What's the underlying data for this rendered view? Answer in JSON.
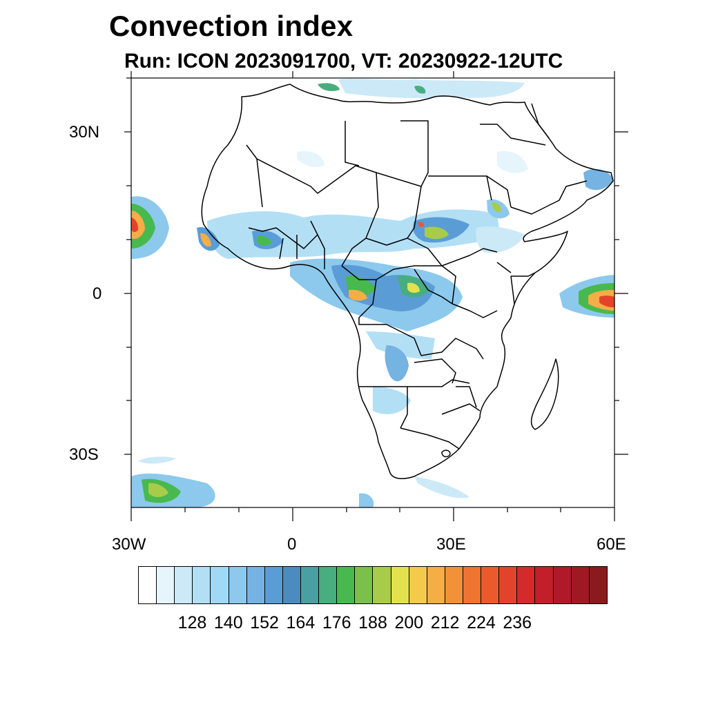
{
  "title": "Convection index",
  "subtitle": "Run: ICON 2023091700,  VT: 20230922-12UTC",
  "axes": {
    "lat_labels": [
      "30N",
      "0",
      "30S"
    ],
    "lon_labels": [
      "30W",
      "0",
      "30E",
      "60E"
    ]
  },
  "colorbar": {
    "colors": [
      "#ffffff",
      "#e6f5fc",
      "#cce9f7",
      "#b3dff5",
      "#a0d9f5",
      "#8cc9ec",
      "#74b3e2",
      "#5a9dd6",
      "#4a8cc0",
      "#49a0a0",
      "#48ad7f",
      "#48b94f",
      "#7bc04a",
      "#a8cc4a",
      "#e3e24e",
      "#f5c94c",
      "#f5ad45",
      "#f39138",
      "#ef7331",
      "#ea5a2c",
      "#e3432a",
      "#d42a2b",
      "#c21f2a",
      "#b01a28",
      "#9e1a22",
      "#8b1a1c"
    ],
    "tick_labels": [
      "128",
      "140",
      "152",
      "164",
      "176",
      "188",
      "200",
      "212",
      "224",
      "236"
    ]
  }
}
